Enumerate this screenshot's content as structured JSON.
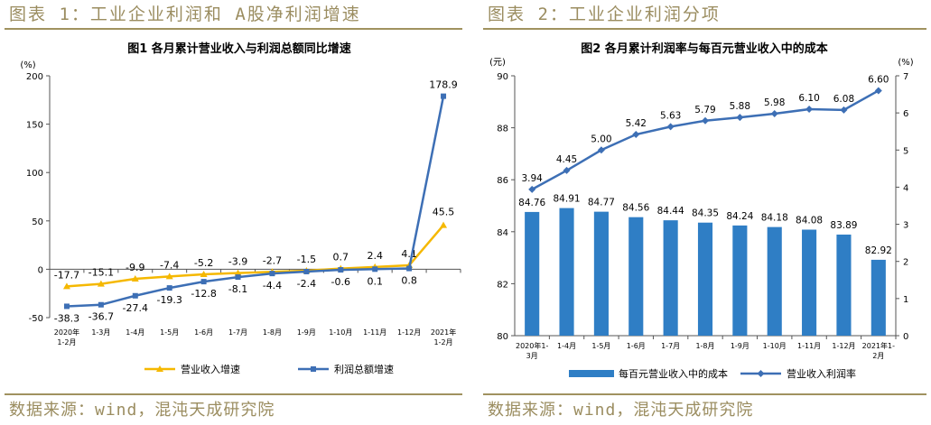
{
  "left_panel": {
    "header": "图表 1：工业企业利润和 A股净利润增速",
    "source": "数据来源：wind，混沌天成研究院"
  },
  "right_panel": {
    "header": "图表 2：工业企业利润分项",
    "source": "数据来源：wind，混沌天成研究院"
  },
  "colors": {
    "yellow": "#f5b800",
    "blue": "#3d6fb5",
    "bar": "#2f7ec5",
    "gold": "#a0925f"
  },
  "chart_data": [
    {
      "type": "line",
      "title": "图1 各月累计营业收入与利润总额同比增速",
      "ylabel": "(%)",
      "ylim": [
        -50,
        200
      ],
      "yticks": [
        "-50",
        "0",
        "50",
        "100",
        "150",
        "200"
      ],
      "categories": [
        "2020年 1-2月",
        "1-3月",
        "1-4月",
        "1-5月",
        "1-6月",
        "1-7月",
        "1-8月",
        "1-9月",
        "1-10月",
        "1-11月",
        "1-12月",
        "2021年 1-2月"
      ],
      "series": [
        {
          "name": "营业收入增速",
          "values": [
            -17.7,
            -15.1,
            -9.9,
            -7.4,
            -5.2,
            -3.9,
            -2.7,
            -1.5,
            0.7,
            2.4,
            4.1,
            45.5
          ],
          "labels": [
            "-17.7",
            "-15.1",
            "-9.9",
            "-7.4",
            "-5.2",
            "-3.9",
            "-2.7",
            "-1.5",
            "0.7",
            "2.4",
            "4.1",
            "45.5"
          ]
        },
        {
          "name": "利润总额增速",
          "values": [
            -38.3,
            -36.7,
            -27.4,
            -19.3,
            -12.8,
            -8.1,
            -4.4,
            -2.4,
            -0.6,
            0.1,
            0.8,
            178.9
          ],
          "labels": [
            "-38.3",
            "-36.7",
            "-27.4",
            "-19.3",
            "-12.8",
            "-8.1",
            "-4.4",
            "-2.4",
            "-0.6",
            "0.1",
            "0.8",
            "178.9"
          ]
        }
      ]
    },
    {
      "type": "bar",
      "title": "图2 各月累计利润率与每百元营业收入中的成本",
      "ylabel_left": "(元)",
      "ylabel_right": "(%)",
      "ylim_left": [
        80,
        90
      ],
      "ylim_right": [
        0,
        7
      ],
      "yticks_left": [
        "80",
        "82",
        "84",
        "86",
        "88",
        "90"
      ],
      "yticks_right": [
        "0",
        "1",
        "2",
        "3",
        "4",
        "5",
        "6",
        "7"
      ],
      "categories": [
        "2020年1-3月",
        "1-4月",
        "1-5月",
        "1-6月",
        "1-7月",
        "1-8月",
        "1-9月",
        "1-10月",
        "1-11月",
        "1-12月",
        "2021年1-2月"
      ],
      "series": [
        {
          "name": "每百元营业收入中的成本",
          "axis": "left",
          "values": [
            84.76,
            84.91,
            84.77,
            84.56,
            84.44,
            84.35,
            84.24,
            84.18,
            84.08,
            83.89,
            82.92
          ],
          "labels": [
            "84.76",
            "84.91",
            "84.77",
            "84.56",
            "84.44",
            "84.35",
            "84.24",
            "84.18",
            "84.08",
            "83.89",
            "82.92"
          ]
        },
        {
          "name": "营业收入利润率",
          "axis": "right",
          "values": [
            3.94,
            4.45,
            5.0,
            5.42,
            5.63,
            5.79,
            5.88,
            5.98,
            6.1,
            6.08,
            6.6
          ],
          "labels": [
            "3.94",
            "4.45",
            "5.00",
            "5.42",
            "5.63",
            "5.79",
            "5.88",
            "5.98",
            "6.10",
            "6.08",
            "6.60"
          ]
        }
      ]
    }
  ]
}
